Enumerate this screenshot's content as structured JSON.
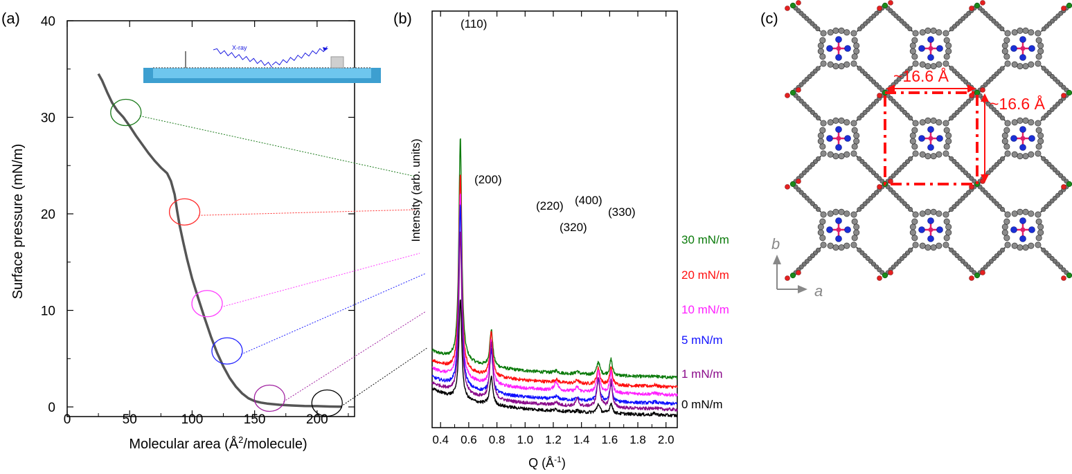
{
  "chart_data": [
    {
      "panel_label": "(a)",
      "type": "line",
      "xlabel_main": "Molecular area (Å",
      "xlabel_sup": "2",
      "xlabel_tail": "/molecule)",
      "ylabel": "Surface pressure (mN/m)",
      "xlim": [
        0,
        230
      ],
      "ylim": [
        -1,
        40
      ],
      "xticks": [
        "0",
        "50",
        "100",
        "150",
        "200"
      ],
      "yticks": [
        "0",
        "10",
        "20",
        "30",
        "40"
      ],
      "inset_label": "X-ray",
      "series": [
        {
          "x": [
            25,
            28,
            32,
            36,
            40,
            45,
            50,
            55,
            60,
            65,
            70,
            75,
            80,
            83,
            86,
            88,
            90,
            93,
            96,
            100,
            105,
            110,
            115,
            120,
            125,
            130,
            135,
            140,
            145,
            150,
            155,
            160,
            170,
            180,
            190,
            200,
            210,
            220
          ],
          "y": [
            34.5,
            33.8,
            32.6,
            31.5,
            30.7,
            30.0,
            29.1,
            28.1,
            27.2,
            26.3,
            25.5,
            24.8,
            24.2,
            23.4,
            22.0,
            20.3,
            18.8,
            17.0,
            15.3,
            13.3,
            11.2,
            9.2,
            7.3,
            5.6,
            4.2,
            3.0,
            2.1,
            1.4,
            0.9,
            0.6,
            0.45,
            0.35,
            0.22,
            0.15,
            0.1,
            0.08,
            0.04,
            0.02
          ]
        }
      ],
      "markers": [
        {
          "x": 47,
          "y": 30.5,
          "color": "#1a7a1a"
        },
        {
          "x": 94,
          "y": 20.2,
          "color": "#ff2a2a"
        },
        {
          "x": 112,
          "y": 10.7,
          "color": "#ff3cff"
        },
        {
          "x": 128,
          "y": 5.8,
          "color": "#2020ff"
        },
        {
          "x": 162,
          "y": 0.9,
          "color": "#a020a0"
        },
        {
          "x": 208,
          "y": 0.4,
          "color": "#000000"
        }
      ]
    },
    {
      "panel_label": "(b)",
      "type": "line",
      "xlabel_main": "Q (Å",
      "xlabel_sup": "-1",
      "xlabel_tail": ")",
      "ylabel": "Intensity (arb. units)",
      "xlim": [
        0.34,
        2.08
      ],
      "xticks": [
        "0.4",
        "0.6",
        "0.8",
        "1.0",
        "1.2",
        "1.4",
        "1.6",
        "1.8",
        "2.0"
      ],
      "peak_labels": [
        "(110)",
        "(200)",
        "(220)",
        "(400)",
        "(320)",
        "(330)"
      ],
      "peaks": {
        "positions": [
          0.54,
          0.76,
          1.22,
          1.37,
          1.52,
          1.61,
          1.92
        ],
        "widths": [
          0.012,
          0.013,
          0.015,
          0.012,
          0.013,
          0.011,
          0.015
        ]
      },
      "series": [
        {
          "name": "30 mN/m",
          "color": "#0a7a0a",
          "baseline": 1.14,
          "amplitudes": [
            7.6,
            1.25,
            0.08,
            0.1,
            0.45,
            0.55,
            0.05
          ]
        },
        {
          "name": "20 mN/m",
          "color": "#ff1010",
          "baseline": 0.82,
          "amplitudes": [
            6.7,
            1.5,
            0.1,
            0.12,
            0.55,
            0.6,
            0.05
          ]
        },
        {
          "name": "10 mN/m",
          "color": "#ff20ff",
          "baseline": 0.55,
          "amplitudes": [
            6.3,
            1.5,
            0.3,
            0.15,
            0.75,
            0.7,
            0.05
          ]
        },
        {
          "name": "5 mN/m",
          "color": "#1010ff",
          "baseline": 0.25,
          "amplitudes": [
            6.2,
            1.45,
            0.1,
            0.08,
            0.7,
            0.6,
            0.05
          ]
        },
        {
          "name": "1 mN/m",
          "color": "#8a0a8a",
          "baseline": 0.05,
          "amplitudes": [
            5.5,
            1.9,
            0.1,
            0.25,
            1.0,
            0.9,
            0.05
          ]
        },
        {
          "name": "0 mN/m",
          "color": "#000000",
          "baseline": -0.15,
          "amplitudes": [
            3.4,
            0.95,
            0.05,
            0.05,
            0.3,
            0.35,
            0.05
          ]
        }
      ]
    },
    {
      "panel_label": "(c)",
      "type": "other",
      "dimension_h": "~16.6 Å",
      "dimension_v": "~16.6 Å",
      "axis_b": "b",
      "axis_a": "a"
    }
  ]
}
